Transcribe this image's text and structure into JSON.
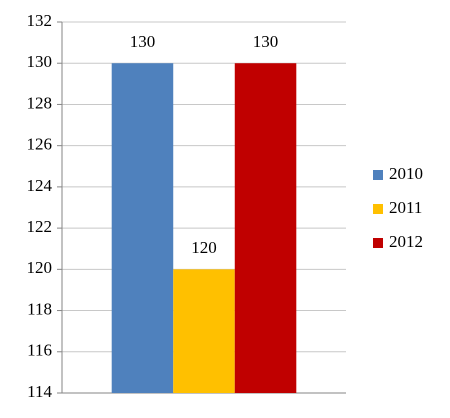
{
  "chart_data": {
    "type": "bar",
    "categories": [
      null
    ],
    "series": [
      {
        "name": "2010",
        "color": "#4f81bd",
        "values": [
          130
        ]
      },
      {
        "name": "2011",
        "color": "#ffc000",
        "values": [
          120
        ]
      },
      {
        "name": "2012",
        "color": "#c00000",
        "values": [
          130
        ]
      }
    ],
    "ylim": [
      114,
      132
    ],
    "yticks": [
      114,
      116,
      118,
      120,
      122,
      124,
      126,
      128,
      130,
      132
    ],
    "grid": true,
    "legend": "right"
  }
}
